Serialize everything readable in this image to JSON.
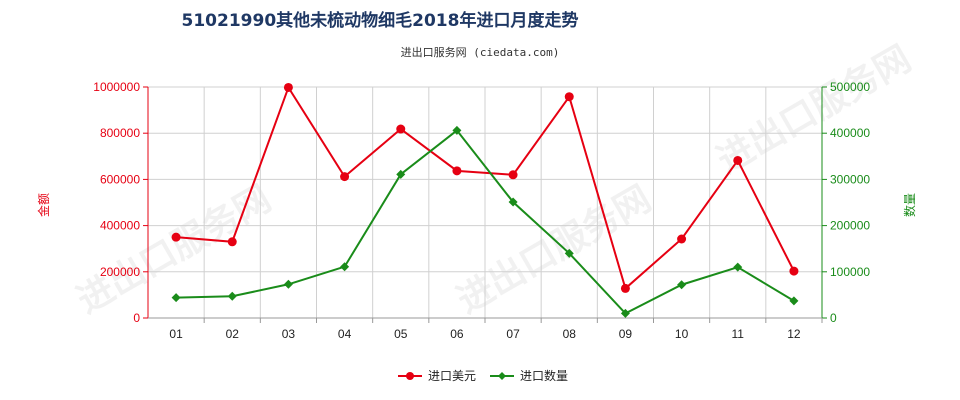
{
  "chart_data": {
    "type": "line",
    "title": "51021990其他未梳动物细毛2018年进口月度走势",
    "subtitle": "进出口服务网 (ciedata.com)",
    "categories": [
      "01",
      "02",
      "03",
      "04",
      "05",
      "06",
      "07",
      "08",
      "09",
      "10",
      "11",
      "12"
    ],
    "ylabel_left": "金额",
    "ylabel_right": "数量",
    "ylim_left": [
      0,
      1000000
    ],
    "ylim_right": [
      0,
      500000
    ],
    "yticks_left": [
      "0",
      "200000",
      "400000",
      "600000",
      "800000",
      "1000000"
    ],
    "yticks_right": [
      "0",
      "100000",
      "200000",
      "300000",
      "400000",
      "500000"
    ],
    "series": [
      {
        "name": "进口美元",
        "axis": "left",
        "color": "#e60012",
        "values": [
          350000,
          330000,
          998000,
          612000,
          818000,
          637000,
          620000,
          958000,
          128000,
          342000,
          682000,
          203000
        ]
      },
      {
        "name": "进口数量",
        "axis": "right",
        "color": "#1a8c1a",
        "values": [
          44000,
          47000,
          73000,
          111000,
          311000,
          406000,
          251000,
          140000,
          10000,
          72000,
          110000,
          37000
        ]
      }
    ],
    "grid": true,
    "legend": "bottom-center",
    "watermark": "进出口服务网"
  }
}
